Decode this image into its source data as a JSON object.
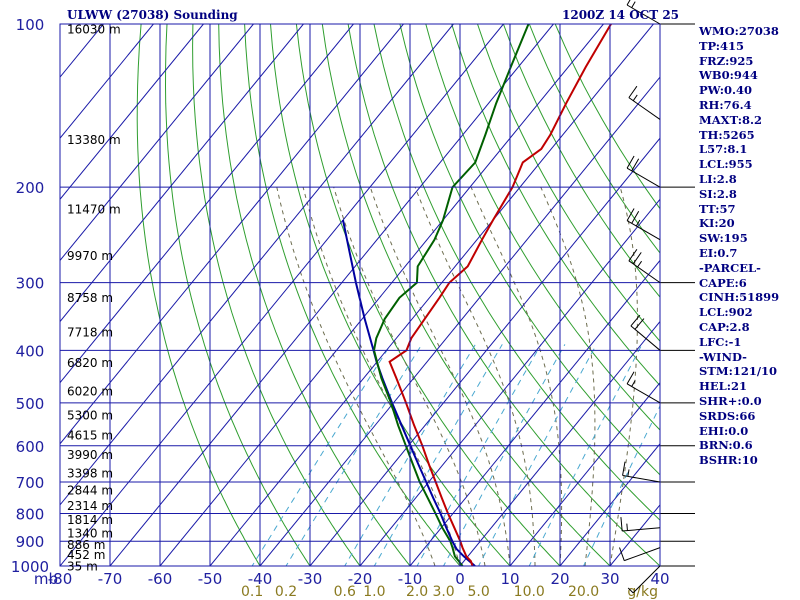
{
  "chart_data": {
    "type": "skew-t sounding",
    "title": "ULWW (27038) Sounding",
    "date": "1200Z 14 OCT 25",
    "pressure_label": "mb",
    "pressure_levels": [
      1000,
      900,
      800,
      700,
      600,
      500,
      400,
      300,
      200,
      100
    ],
    "temperature_ticks": [
      -80,
      -70,
      -60,
      -50,
      -40,
      -30,
      -20,
      -10,
      0,
      10,
      20,
      30,
      40
    ],
    "temperature_tick_labels": [
      "-80",
      "-70",
      "-60",
      "-50",
      "-40",
      "-30",
      "-20",
      "-10",
      "0",
      "10",
      "20",
      "30",
      "40"
    ],
    "mixing_ratio_labels": [
      {
        "t": "0.1",
        "w": 0.1
      },
      {
        "t": "0.2",
        "w": 0.2
      },
      {
        "t": "0.6",
        "w": 0.6
      },
      {
        "t": "1.0",
        "w": 1.0
      },
      {
        "t": "2.0",
        "w": 2.0
      },
      {
        "t": "3.0",
        "w": 3.0
      },
      {
        "t": "5.0",
        "w": 5.0
      },
      {
        "t": "10.0",
        "w": 10.0
      },
      {
        "t": "20.0",
        "w": 20.0
      }
    ],
    "mixing_ratio_unit": "g/kg",
    "height_labels": [
      {
        "p": 997,
        "t": "35 m"
      },
      {
        "p": 950,
        "t": "452 m"
      },
      {
        "p": 911,
        "t": "886 m"
      },
      {
        "p": 868,
        "t": "1340 m"
      },
      {
        "p": 819,
        "t": "1814 m"
      },
      {
        "p": 772,
        "t": "2314 m"
      },
      {
        "p": 722,
        "t": "2844 m"
      },
      {
        "p": 672,
        "t": "3398 m"
      },
      {
        "p": 621,
        "t": "3990 m"
      },
      {
        "p": 572,
        "t": "4615 m"
      },
      {
        "p": 525,
        "t": "5300 m"
      },
      {
        "p": 474,
        "t": "6020 m"
      },
      {
        "p": 420,
        "t": "6820 m"
      },
      {
        "p": 369,
        "t": "7718 m"
      },
      {
        "p": 319,
        "t": "8758 m"
      },
      {
        "p": 267,
        "t": "9970 m"
      },
      {
        "p": 219,
        "t": "11470 m"
      },
      {
        "p": 163,
        "t": "13380 m"
      },
      {
        "p": 102,
        "t": "16030 m"
      }
    ],
    "temperature_profile": [
      {
        "p": 1000,
        "t": 2.5
      },
      {
        "p": 980,
        "t": 1.4
      },
      {
        "p": 960,
        "t": -0.3
      },
      {
        "p": 925,
        "t": -2.5
      },
      {
        "p": 900,
        "t": -4.0
      },
      {
        "p": 850,
        "t": -7.4
      },
      {
        "p": 800,
        "t": -11.0
      },
      {
        "p": 750,
        "t": -14.7
      },
      {
        "p": 700,
        "t": -18.6
      },
      {
        "p": 650,
        "t": -22.8
      },
      {
        "p": 600,
        "t": -27.2
      },
      {
        "p": 550,
        "t": -32.2
      },
      {
        "p": 500,
        "t": -37.5
      },
      {
        "p": 450,
        "t": -43.5
      },
      {
        "p": 420,
        "t": -47.5
      },
      {
        "p": 400,
        "t": -46.0
      },
      {
        "p": 380,
        "t": -47.0
      },
      {
        "p": 350,
        "t": -47.5
      },
      {
        "p": 320,
        "t": -48.0
      },
      {
        "p": 300,
        "t": -48.5
      },
      {
        "p": 280,
        "t": -47.5
      },
      {
        "p": 250,
        "t": -49.0
      },
      {
        "p": 230,
        "t": -50.0
      },
      {
        "p": 200,
        "t": -51.5
      },
      {
        "p": 180,
        "t": -53.5
      },
      {
        "p": 170,
        "t": -52.0
      },
      {
        "p": 160,
        "t": -52.5
      },
      {
        "p": 140,
        "t": -54.5
      },
      {
        "p": 120,
        "t": -56.5
      },
      {
        "p": 100,
        "t": -58.5
      }
    ],
    "dewpoint_profile": [
      {
        "p": 1000,
        "t": 0.5
      },
      {
        "p": 980,
        "t": -1.0
      },
      {
        "p": 960,
        "t": -2.6
      },
      {
        "p": 925,
        "t": -4.5
      },
      {
        "p": 900,
        "t": -6.0
      },
      {
        "p": 850,
        "t": -9.8
      },
      {
        "p": 800,
        "t": -13.5
      },
      {
        "p": 750,
        "t": -17.5
      },
      {
        "p": 700,
        "t": -21.8
      },
      {
        "p": 650,
        "t": -26.0
      },
      {
        "p": 600,
        "t": -30.5
      },
      {
        "p": 550,
        "t": -35.4
      },
      {
        "p": 500,
        "t": -40.5
      },
      {
        "p": 450,
        "t": -46.5
      },
      {
        "p": 400,
        "t": -52.5
      },
      {
        "p": 380,
        "t": -54.0
      },
      {
        "p": 350,
        "t": -55.5
      },
      {
        "p": 320,
        "t": -56.0
      },
      {
        "p": 300,
        "t": -55.0
      },
      {
        "p": 280,
        "t": -57.5
      },
      {
        "p": 250,
        "t": -58.5
      },
      {
        "p": 230,
        "t": -60.0
      },
      {
        "p": 200,
        "t": -63.5
      },
      {
        "p": 180,
        "t": -63.0
      },
      {
        "p": 160,
        "t": -65.5
      },
      {
        "p": 140,
        "t": -68.5
      },
      {
        "p": 120,
        "t": -71.5
      },
      {
        "p": 100,
        "t": -75.0
      }
    ],
    "parcel_profile": [
      {
        "p": 1000,
        "t": 3.0
      },
      {
        "p": 960,
        "t": -0.8
      },
      {
        "p": 930,
        "t": -3.5
      },
      {
        "p": 900,
        "t": -5.6
      },
      {
        "p": 850,
        "t": -9.0
      },
      {
        "p": 800,
        "t": -12.5
      },
      {
        "p": 750,
        "t": -16.4
      },
      {
        "p": 700,
        "t": -20.5
      },
      {
        "p": 650,
        "t": -24.9
      },
      {
        "p": 600,
        "t": -29.6
      },
      {
        "p": 550,
        "t": -34.7
      },
      {
        "p": 500,
        "t": -40.3
      },
      {
        "p": 450,
        "t": -46.3
      },
      {
        "p": 420,
        "t": -50.1
      },
      {
        "p": 400,
        "t": -52.6
      },
      {
        "p": 350,
        "t": -59.5
      },
      {
        "p": 300,
        "t": -67.2
      },
      {
        "p": 250,
        "t": -76.0
      },
      {
        "p": 230,
        "t": -80.0
      }
    ],
    "wind_barbs": [
      {
        "p": 1000,
        "dir": 225,
        "spd": 5
      },
      {
        "p": 925,
        "dir": 250,
        "spd": 10
      },
      {
        "p": 850,
        "dir": 265,
        "spd": 15
      },
      {
        "p": 700,
        "dir": 280,
        "spd": 15
      },
      {
        "p": 500,
        "dir": 300,
        "spd": 15
      },
      {
        "p": 400,
        "dir": 310,
        "spd": 20
      },
      {
        "p": 300,
        "dir": 305,
        "spd": 25
      },
      {
        "p": 250,
        "dir": 300,
        "spd": 25
      },
      {
        "p": 200,
        "dir": 300,
        "spd": 20
      },
      {
        "p": 150,
        "dir": 305,
        "spd": 15
      },
      {
        "p": 100,
        "dir": 300,
        "spd": 15
      }
    ],
    "indices": [
      "WMO:27038",
      "TP:415",
      "FRZ:925",
      "WB0:944",
      "PW:0.40",
      "RH:76.4",
      "MAXT:8.2",
      "TH:5265",
      "L57:8.1",
      "LCL:955",
      "LI:2.8",
      "SI:2.8",
      "TT:57",
      "KI:20",
      "SW:195",
      "EI:0.7",
      "-PARCEL-",
      "CAPE:6",
      "CINH:51899",
      "LCL:902",
      "CAP:2.8",
      "LFC:-1",
      "-WIND-",
      "STM:121/10",
      "HEL:21",
      "SHR+:0.0",
      "SRDS:66",
      "EHI:0.0",
      "BRN:0.6",
      "BSHR:10"
    ],
    "colors": {
      "isobar": "#1a1aa8",
      "isotherm": "#1a1aa8",
      "dry_adiabat": "#2f9e2f",
      "moist_adiabat": "#6e6e50",
      "mixing_ratio": "#4aa8d0",
      "temperature": "#c00000",
      "dewpoint": "#006000",
      "parcel": "#0000a0",
      "axis_labels": "#2020a0",
      "mixing_labels": "#8a7a20",
      "text": "#000080"
    }
  }
}
